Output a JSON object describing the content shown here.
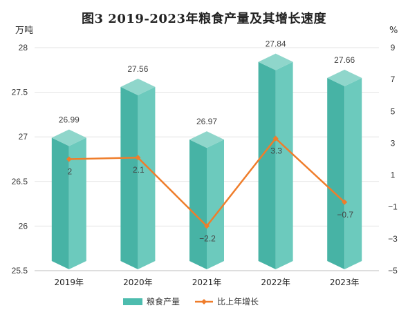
{
  "chart_data": {
    "type": "bar",
    "title": "图3   2019-2023年粮食产量及其增长速度",
    "y_left_unit": "万吨",
    "y_right_unit": "%",
    "categories": [
      "2019年",
      "2020年",
      "2021年",
      "2022年",
      "2023年"
    ],
    "y_left_ticks": [
      "25.5",
      "26",
      "26.5",
      "27",
      "27.5",
      "28"
    ],
    "y_right_ticks": [
      "−5",
      "−3",
      "−1",
      "1",
      "3",
      "5",
      "7",
      "9"
    ],
    "ylim_left": [
      25.5,
      28
    ],
    "ylim_right": [
      -5,
      9
    ],
    "grid": true,
    "legend_position": "bottom",
    "series": [
      {
        "name": "粮食产量",
        "type": "bar",
        "axis": "left",
        "values": [
          26.99,
          27.56,
          26.97,
          27.84,
          27.66
        ],
        "labels": [
          "26.99",
          "27.56",
          "26.97",
          "27.84",
          "27.66"
        ],
        "color": "#4dbcae"
      },
      {
        "name": "比上年增长",
        "type": "line",
        "axis": "right",
        "values": [
          2,
          2.1,
          -2.2,
          3.3,
          -0.7
        ],
        "labels": [
          "2",
          "2.1",
          "−2.2",
          "3.3",
          "−0.7"
        ],
        "color": "#ef7d2b"
      }
    ]
  }
}
